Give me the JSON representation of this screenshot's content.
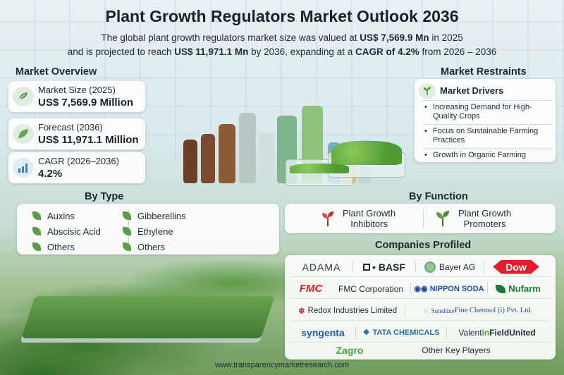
{
  "header": {
    "title": "Plant Growth Regulators Market Outlook 2036",
    "line1_pre": "The global plant growth regulators market size was valued at ",
    "line1_bold": "US$ 7,569.9 Mn",
    "line1_post": " in 2025",
    "line2_pre": "and is projected to reach ",
    "line2_bold1": "US$ 11,971.1 Mn",
    "line2_mid": " by 2036, expanding at a ",
    "line2_bold2": "CAGR of 4.2%",
    "line2_post": " from 2026 – 2036"
  },
  "overview": {
    "title": "Market Overview",
    "cards": [
      {
        "label": "Market Size (2025)",
        "value": "US$ 7,569.9 Million",
        "icon": "leaf-hand-icon"
      },
      {
        "label": "Forecast (2036)",
        "value": "US$ 11,971.1 Million",
        "icon": "leaf-icon"
      },
      {
        "label": "CAGR (2026–2036)",
        "value": "4.2%",
        "icon": "bar-chart-icon"
      }
    ]
  },
  "restraints": {
    "title": "Market Restraints",
    "drivers_title": "Market Drivers",
    "drivers": [
      "Increasing Demand for High-Quality Crops",
      "Focus on Sustainable Farming Practices",
      "Growth in Organic Farming"
    ]
  },
  "by_type": {
    "title": "By Type",
    "left": [
      "Auxins",
      "Abscisic Acid",
      "Others"
    ],
    "right": [
      "Gibberellins",
      "Ethylene",
      "Others"
    ]
  },
  "by_function": {
    "title": "By Function",
    "items": [
      {
        "label_line1": "Plant Growth",
        "label_line2": "Inhibitors",
        "icon": "plant-inhibitor-icon"
      },
      {
        "label_line1": "Plant Growth",
        "label_line2": "Promoters",
        "icon": "plant-promoter-icon"
      }
    ]
  },
  "companies": {
    "title": "Companies Profiled",
    "adama": "ADAMA",
    "basf": "BASF",
    "bayer": "Bayer AG",
    "dow": "Dow",
    "fmc_logo": "FMC",
    "fmc": "FMC Corporation",
    "nippon": "NIPPON SODA",
    "nufarm": "Nufarm",
    "redox": "Redox Industries Limited",
    "sunshine_pre": "Sunshine ",
    "sunshine_post": "Fine Chemsol (i) Pvt. Ltd.",
    "syngenta": "syngenta",
    "tata": "TATA CHEMICALS",
    "valent_pre": "Valent ",
    "valent_in": "in",
    "valent_field": "Field ",
    "valent_united": "United",
    "zagro": "Zagro",
    "others": "Other Key Players"
  },
  "footer": {
    "url": "www.transparencymarketresearch.com"
  },
  "colors": {
    "accent_green": "#5e9c4b",
    "fmc_red": "#d2232a",
    "dow_red": "#e31d2b",
    "tata_blue": "#2b6cb0",
    "syngenta_blue": "#1f5fae",
    "zagro_green": "#4aa23b"
  }
}
